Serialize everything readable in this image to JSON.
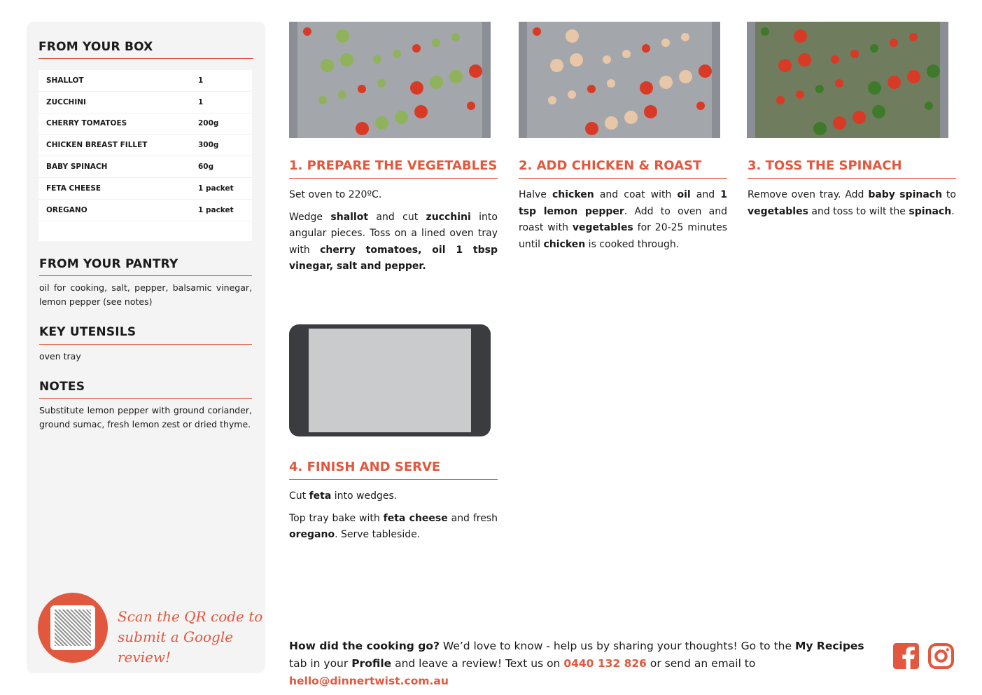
{
  "sidebar": {
    "box_title": "FROM YOUR BOX",
    "ingredients": [
      {
        "name": "SHALLOT",
        "qty": "1"
      },
      {
        "name": "ZUCCHINI",
        "qty": "1"
      },
      {
        "name": "CHERRY TOMATOES",
        "qty": "200g"
      },
      {
        "name": "CHICKEN BREAST FILLET",
        "qty": "300g"
      },
      {
        "name": "BABY SPINACH",
        "qty": "60g"
      },
      {
        "name": "FETA CHEESE",
        "qty": "1 packet"
      },
      {
        "name": "OREGANO",
        "qty": "1 packet"
      }
    ],
    "pantry_title": "FROM YOUR PANTRY",
    "pantry_text": "oil for cooking, salt, pepper, balsamic vinegar, lemon pepper (see notes)",
    "utensils_title": "KEY UTENSILS",
    "utensils_text": "oven tray",
    "notes_title": "NOTES",
    "notes_text": "Substitute lemon pepper with ground coriander, ground sumac, fresh lemon zest or dried thyme.",
    "qr_line1": "Scan the QR code to",
    "qr_line2": "submit a Google review!"
  },
  "accent_color": "#e2583e",
  "steps": [
    {
      "title": "1. PREPARE THE VEGETABLES",
      "paragraphs": [
        [
          {
            "t": "Set oven to 220ºC."
          }
        ],
        [
          {
            "t": "Wedge "
          },
          {
            "t": "shallot",
            "b": true
          },
          {
            "t": " and cut "
          },
          {
            "t": "zucchini",
            "b": true
          },
          {
            "t": " into angular pieces. Toss on a lined oven tray with "
          },
          {
            "t": "cherry tomatoes, oil 1 tbsp vinegar, salt and pepper.",
            "b": true
          }
        ]
      ]
    },
    {
      "title": "2. ADD CHICKEN & ROAST",
      "paragraphs": [
        [
          {
            "t": "Halve "
          },
          {
            "t": "chicken",
            "b": true
          },
          {
            "t": " and coat with "
          },
          {
            "t": "oil",
            "b": true
          },
          {
            "t": " and "
          },
          {
            "t": "1 tsp lemon pepper",
            "b": true
          },
          {
            "t": ". Add to oven and roast with "
          },
          {
            "t": "vegetables",
            "b": true
          },
          {
            "t": " for 20-25 minutes until "
          },
          {
            "t": "chicken",
            "b": true
          },
          {
            "t": " is cooked through."
          }
        ]
      ]
    },
    {
      "title": "3. TOSS THE SPINACH",
      "paragraphs": [
        [
          {
            "t": "Remove oven tray. Add "
          },
          {
            "t": "baby spinach",
            "b": true
          },
          {
            "t": " to "
          },
          {
            "t": "vegetables",
            "b": true
          },
          {
            "t": " and toss to wilt the "
          },
          {
            "t": "spinach",
            "b": true
          },
          {
            "t": "."
          }
        ]
      ]
    },
    {
      "title": "4. FINISH AND SERVE",
      "paragraphs": [
        [
          {
            "t": "Cut "
          },
          {
            "t": "feta",
            "b": true
          },
          {
            "t": " into wedges."
          }
        ],
        [
          {
            "t": "Top tray bake with "
          },
          {
            "t": "feta cheese",
            "b": true
          },
          {
            "t": " and fresh "
          },
          {
            "t": "oregano",
            "b": true
          },
          {
            "t": ". Serve tableside."
          }
        ]
      ]
    }
  ],
  "footer": {
    "segments": [
      {
        "t": "How did the cooking go?",
        "b": true
      },
      {
        "t": " We’d love to know - help us by sharing your thoughts! Go to the "
      },
      {
        "t": "My Recipes",
        "b": true
      },
      {
        "t": " tab in your "
      },
      {
        "t": "Profile",
        "b": true
      },
      {
        "t": " and leave a review! Text us on "
      },
      {
        "t": "0440 132 826",
        "a": true
      },
      {
        "t": " or send an email to "
      },
      {
        "t": "hello@dinnertwist.com.au",
        "a": true
      }
    ],
    "icons": [
      "facebook-icon",
      "instagram-icon"
    ]
  }
}
